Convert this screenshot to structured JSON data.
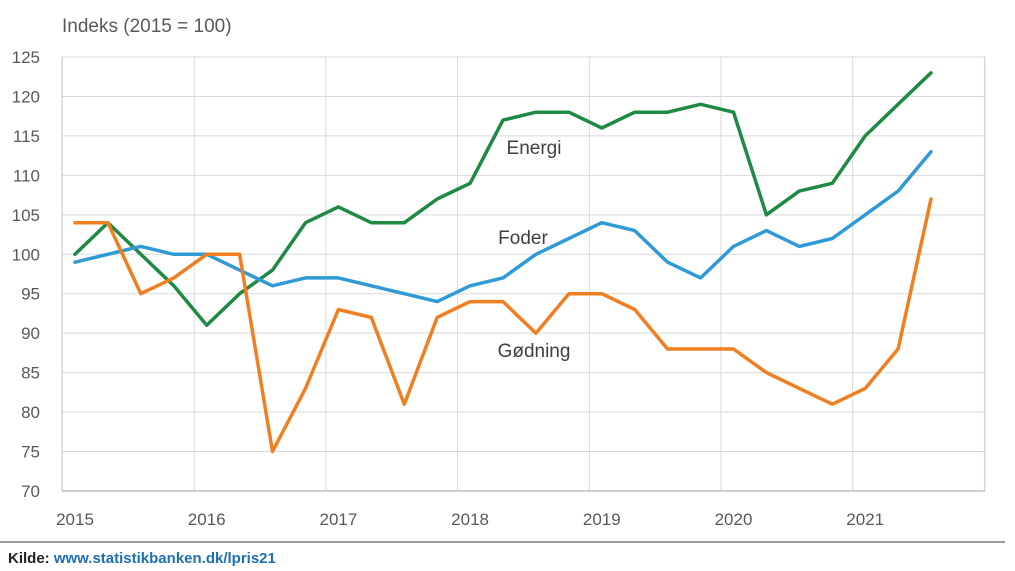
{
  "chart_data": {
    "type": "line",
    "ylabel": "Indeks (2015 = 100)",
    "ylim": [
      70,
      125
    ],
    "yticks": [
      70,
      75,
      80,
      85,
      90,
      95,
      100,
      105,
      110,
      115,
      120,
      125
    ],
    "xlim": [
      2015,
      2022
    ],
    "xticks": [
      "2015",
      "2016",
      "2017",
      "2018",
      "2019",
      "2020",
      "2021"
    ],
    "grid": true,
    "x": [
      "2015Q1",
      "2015Q2",
      "2015Q3",
      "2015Q4",
      "2016Q1",
      "2016Q2",
      "2016Q3",
      "2016Q4",
      "2017Q1",
      "2017Q2",
      "2017Q3",
      "2017Q4",
      "2018Q1",
      "2018Q2",
      "2018Q3",
      "2018Q4",
      "2019Q1",
      "2019Q2",
      "2019Q3",
      "2019Q4",
      "2020Q1",
      "2020Q2",
      "2020Q3",
      "2020Q4",
      "2021Q1",
      "2021Q2",
      "2021Q3"
    ],
    "series": [
      {
        "name": "Energi",
        "color": "#1e8a43",
        "values": [
          100,
          104,
          100,
          96,
          91,
          95,
          98,
          104,
          106,
          104,
          104,
          107,
          109,
          117,
          118,
          118,
          116,
          118,
          118,
          119,
          118,
          105,
          108,
          109,
          115,
          119,
          123
        ]
      },
      {
        "name": "Foder",
        "color": "#2f9ad6",
        "values": [
          99,
          100,
          101,
          100,
          100,
          98,
          96,
          97,
          97,
          96,
          95,
          94,
          96,
          97,
          100,
          102,
          104,
          103,
          99,
          97,
          101,
          103,
          101,
          102,
          105,
          108,
          113
        ]
      },
      {
        "name": "Gødning",
        "color": "#f07f22",
        "values": [
          104,
          104,
          95,
          97,
          100,
          100,
          75,
          83,
          93,
          92,
          81,
          92,
          94,
          94,
          90,
          95,
          95,
          93,
          88,
          88,
          88,
          85,
          83,
          81,
          83,
          88,
          107
        ]
      }
    ]
  },
  "source": {
    "label": "Kilde:",
    "link": "www.statistikbanken.dk/lpris21"
  }
}
